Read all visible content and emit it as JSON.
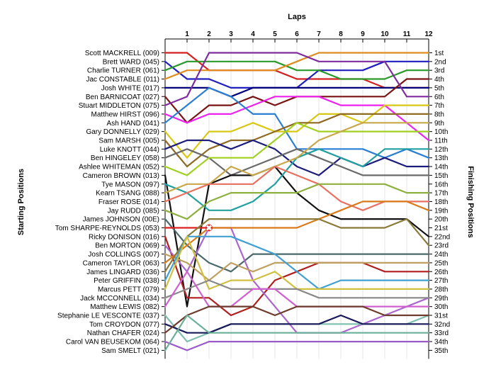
{
  "chart_data": {
    "type": "line",
    "title": "Laps",
    "xlabel": "Laps",
    "ylabel_left": "Starting Positions",
    "ylabel_right": "Finishing Positions",
    "laps": [
      1,
      2,
      3,
      4,
      5,
      6,
      7,
      8,
      9,
      10,
      11,
      12
    ],
    "x_range": [
      0,
      12
    ],
    "y_range": [
      1,
      35
    ],
    "y_axis_note": "position 1 at top, 35 at bottom",
    "grid": true,
    "legend": "none",
    "starting_labels": [
      "Scott MACKRELL (009)",
      "Brett WARD (045)",
      "Charlie TURNER (061)",
      "Jac CONSTABLE (011)",
      "Josh WHITE (017)",
      "Ben BARNICOAT (027)",
      "Stuart MIDDLETON (075)",
      "Matthew HIRST (096)",
      "Ash HAND (041)",
      "Gary DONNELLY (029)",
      "Sam MARSH (005)",
      "Luke KNOTT (044)",
      "Ben HINGELEY (058)",
      "Ashlee WHITEMAN (052)",
      "Cameron BROWN (013)",
      "Tye MASON (097)",
      "Kearn TSANG (088)",
      "Fraser ROSE (014)",
      "Jay RUDD (085)",
      "James JOHNSON (00E)",
      "Tom SHARPE-REYNOLDS (053)",
      "Ricky DONISON (016)",
      "Ben MORTON (069)",
      "Josh COLLINGS (007)",
      "Cameron TAYLOR (063)",
      "James LINGARD (036)",
      "Peter GRIFFIN (038)",
      "Marcus PETT (079)",
      "Jack MCCONNELL (034)",
      "Matthew LEWIS (082)",
      "Stephanie LE VESCONTE (037)",
      "Tom CROYDON (077)",
      "Nathan CHAFER (024)",
      "Carol VAN BEUSEKOM (064)",
      "Sam SMELT (021)"
    ],
    "finishing_labels": [
      "1st",
      "2nd",
      "3rd",
      "4th",
      "5th",
      "6th",
      "7th",
      "8th",
      "9th",
      "10th",
      "11th",
      "12th",
      "13th",
      "14th",
      "15th",
      "16th",
      "17th",
      "18th",
      "19th",
      "20th",
      "21st",
      "22nd",
      "23rd",
      "24th",
      "25th",
      "26th",
      "27th",
      "28th",
      "29th",
      "30th",
      "31st",
      "32nd",
      "33rd",
      "34th",
      "35th"
    ],
    "retirement_marker": {
      "series": "Tom SHARPE-REYNOLDS (053)",
      "lap": 2,
      "position": 21,
      "symbol": "✖",
      "color": "#dd2222"
    },
    "series": [
      {
        "color": "#d42020",
        "positions": [
          1,
          1,
          3,
          3,
          3,
          3,
          4,
          4,
          4,
          4,
          5,
          5,
          5
        ]
      },
      {
        "color": "#1f1fbf",
        "positions": [
          2,
          4,
          4,
          5,
          5,
          5,
          5,
          3,
          3,
          3,
          2,
          2,
          2
        ]
      },
      {
        "color": "#2a9a2a",
        "positions": [
          3,
          2,
          2,
          2,
          2,
          2,
          3,
          3,
          4,
          4,
          4,
          3,
          3
        ]
      },
      {
        "color": "#e08c1e",
        "positions": [
          4,
          3,
          3,
          3,
          3,
          3,
          2,
          1,
          1,
          1,
          1,
          1,
          1
        ]
      },
      {
        "color": "#00007a",
        "positions": [
          5,
          5,
          5,
          6,
          5,
          5,
          5,
          5,
          5,
          5,
          5,
          5,
          5
        ]
      },
      {
        "color": "#7a1414",
        "positions": [
          6,
          9,
          7,
          7,
          6,
          7,
          6,
          6,
          6,
          6,
          6,
          4,
          4
        ]
      },
      {
        "color": "#7f2d9e",
        "positions": [
          7,
          6,
          1,
          1,
          1,
          1,
          1,
          2,
          2,
          2,
          2,
          6,
          6
        ]
      },
      {
        "color": "#ee22ee",
        "positions": [
          8,
          9,
          8,
          8,
          7,
          6,
          6,
          6,
          7,
          7,
          7,
          9,
          11
        ]
      },
      {
        "color": "#2a7fd4",
        "positions": [
          9,
          7,
          5,
          6,
          8,
          8,
          12,
          12,
          12,
          12,
          13,
          12,
          13
        ]
      },
      {
        "color": "#d8c814",
        "positions": [
          10,
          13,
          10,
          10,
          9,
          10,
          10,
          8,
          8,
          9,
          7,
          7,
          7
        ]
      },
      {
        "color": "#8e6a22",
        "positions": [
          11,
          14,
          12,
          11,
          11,
          10,
          9,
          9,
          8,
          8,
          8,
          8,
          8
        ]
      },
      {
        "color": "#1c1c7a",
        "positions": [
          12,
          11,
          11,
          12,
          11,
          12,
          14,
          15,
          13,
          14,
          13,
          14,
          14
        ]
      },
      {
        "color": "#6a6a6a",
        "positions": [
          13,
          12,
          13,
          15,
          14,
          13,
          12,
          13,
          14,
          15,
          15,
          15,
          15
        ]
      },
      {
        "color": "#a0d020",
        "positions": [
          14,
          15,
          13,
          13,
          13,
          11,
          9,
          10,
          10,
          10,
          10,
          10,
          10
        ]
      },
      {
        "color": "#111111",
        "positions": [
          15,
          30,
          16,
          15,
          15,
          14,
          17,
          19,
          20,
          20,
          20,
          20,
          22
        ]
      },
      {
        "color": "#22a0a0",
        "positions": [
          16,
          17,
          19,
          19,
          18,
          16,
          13,
          12,
          13,
          14,
          12,
          12,
          12
        ]
      },
      {
        "color": "#c8a84a",
        "positions": [
          17,
          16,
          16,
          14,
          15,
          14,
          13,
          11,
          10,
          9,
          9,
          9,
          9
        ]
      },
      {
        "color": "#e87060",
        "positions": [
          18,
          17,
          16,
          16,
          16,
          14,
          15,
          16,
          18,
          19,
          18,
          18,
          18
        ]
      },
      {
        "color": "#8db03e",
        "positions": [
          19,
          20,
          18,
          17,
          17,
          17,
          17,
          16,
          16,
          16,
          16,
          17,
          17
        ]
      },
      {
        "color": "#4a6a6a",
        "positions": [
          20,
          23,
          25,
          26,
          24,
          24,
          24,
          24,
          24,
          24,
          24,
          24,
          24
        ]
      },
      {
        "color": "#dd2222",
        "positions": [
          21,
          21,
          21
        ]
      },
      {
        "color": "#b01e1e",
        "positions": [
          22,
          29,
          29,
          31,
          30,
          27,
          26,
          25,
          25,
          25,
          26,
          26,
          26
        ]
      },
      {
        "color": "#aa66cc",
        "positions": [
          23,
          26,
          21,
          21,
          27,
          30,
          33,
          33,
          33,
          32,
          31,
          30,
          29
        ]
      },
      {
        "color": "#c0a060",
        "positions": [
          24,
          25,
          27,
          25,
          26,
          25,
          25,
          25,
          25,
          25,
          25,
          25,
          25
        ]
      },
      {
        "color": "#da7a1a",
        "positions": [
          25,
          23,
          21,
          21,
          21,
          21,
          21,
          20,
          19,
          18,
          18,
          18,
          19
        ]
      },
      {
        "color": "#8a7a3a",
        "positions": [
          26,
          22,
          20,
          20,
          20,
          20,
          20,
          20,
          21,
          21,
          21,
          20,
          23
        ]
      },
      {
        "color": "#40a0d0",
        "positions": [
          27,
          22,
          22,
          22,
          23,
          24,
          26,
          28,
          27,
          27,
          27,
          27,
          27
        ]
      },
      {
        "color": "#d0c040",
        "positions": [
          28,
          22,
          28,
          27,
          27,
          26,
          28,
          28,
          28,
          28,
          28,
          28,
          28
        ]
      },
      {
        "color": "#888888",
        "positions": [
          29,
          28,
          27,
          28,
          28,
          28,
          28,
          29,
          29,
          29,
          29,
          29,
          29
        ]
      },
      {
        "color": "#cf60cf",
        "positions": [
          30,
          26,
          30,
          30,
          28,
          28,
          30,
          30,
          30,
          30,
          30,
          30,
          30
        ]
      },
      {
        "color": "#7fbfaf",
        "positions": [
          31,
          34,
          33,
          32,
          32,
          32,
          32,
          32,
          32,
          32,
          32,
          32,
          31
        ]
      },
      {
        "color": "#1a1a5a",
        "positions": [
          32,
          33,
          33,
          32,
          32,
          32,
          32,
          32,
          31,
          32,
          32,
          32,
          32
        ]
      },
      {
        "color": "#6e3c2c",
        "positions": [
          33,
          31,
          30,
          30,
          30,
          31,
          30,
          30,
          30,
          30,
          31,
          31,
          31
        ]
      },
      {
        "color": "#9a5ac8",
        "positions": [
          34,
          35,
          34,
          34,
          34,
          34,
          34,
          34,
          34,
          34,
          34,
          34,
          34
        ]
      },
      {
        "color": "#6ab09a",
        "positions": [
          35,
          31,
          33,
          33,
          33,
          33,
          33,
          33,
          33,
          33,
          33,
          33,
          33
        ]
      }
    ]
  }
}
